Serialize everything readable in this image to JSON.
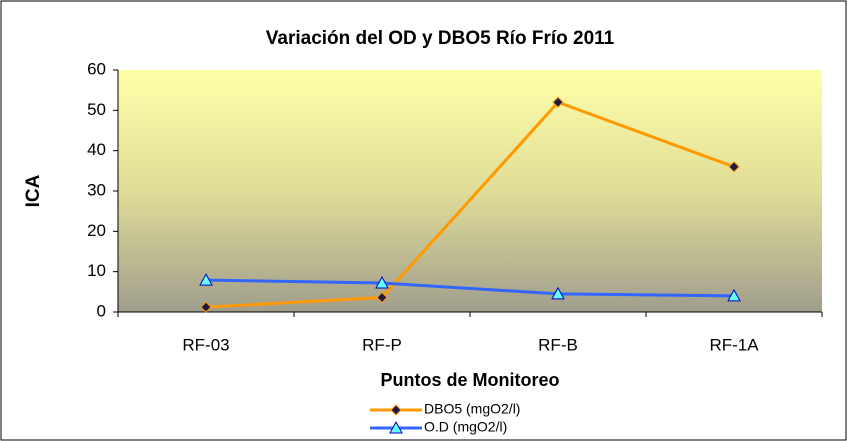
{
  "chart_data": {
    "type": "line",
    "title": "Variación del OD y DBO5 Río Frío 2011",
    "x_label": "Puntos de Monitoreo",
    "y_label": "ICA",
    "categories": [
      "RF-03",
      "RF-P",
      "RF-B",
      "RF-1A"
    ],
    "series": [
      {
        "name": "DBO5 (mgO2/l)",
        "color": "#ff9900",
        "marker": "diamond",
        "values": [
          1.2,
          3.6,
          52,
          36
        ]
      },
      {
        "name": "O.D (mgO2/l)",
        "color": "#3366ff",
        "marker": "triangle",
        "values": [
          7.9,
          7.2,
          4.5,
          4.0
        ]
      }
    ],
    "ylim": [
      0,
      60
    ],
    "yticks": [
      0,
      10,
      20,
      30,
      40,
      50,
      60
    ]
  }
}
